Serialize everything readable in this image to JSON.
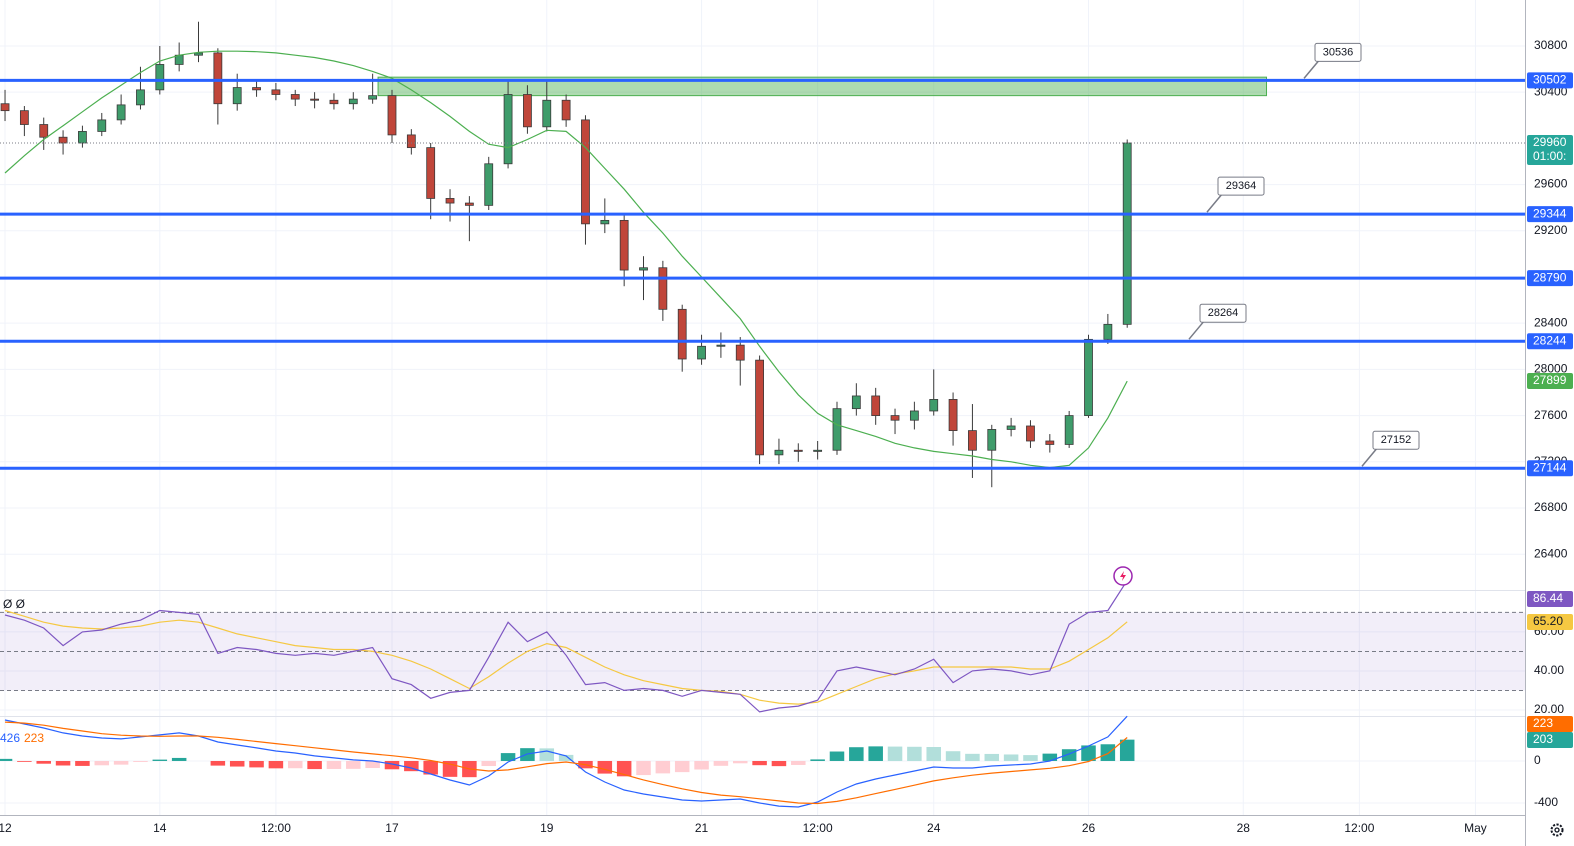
{
  "chart_data": {
    "type": "candlestick",
    "x": [
      0,
      0.25,
      0.5,
      0.75,
      1,
      1.25,
      1.5,
      1.75,
      2,
      2.25,
      2.5,
      2.75,
      3,
      3.25,
      3.5,
      3.75,
      4,
      4.25,
      4.5,
      4.75,
      5,
      5.25,
      5.5,
      5.75,
      6,
      6.25,
      6.5,
      6.75,
      7,
      7.25,
      7.5,
      7.75,
      8,
      8.25,
      8.5,
      8.75,
      9,
      9.25,
      9.5,
      9.75,
      10,
      10.25,
      10.5,
      10.75,
      11,
      11.25,
      11.5,
      11.75,
      12,
      12.25,
      12.5,
      12.75,
      13,
      13.25,
      13.5,
      13.75,
      14,
      14.25,
      14.5
    ],
    "xlim": [
      -0.065,
      19.64
    ],
    "xticks": [
      {
        "value": 0,
        "label": "12"
      },
      {
        "value": 2,
        "label": "14"
      },
      {
        "value": 3.5,
        "label": "12:00"
      },
      {
        "value": 5,
        "label": "17"
      },
      {
        "value": 7,
        "label": "19"
      },
      {
        "value": 9,
        "label": "21"
      },
      {
        "value": 10.5,
        "label": "12:00"
      },
      {
        "value": 12,
        "label": "24"
      },
      {
        "value": 14,
        "label": "26"
      },
      {
        "value": 16,
        "label": "28"
      },
      {
        "value": 17.5,
        "label": "12:00"
      },
      {
        "value": 19,
        "label": "May"
      }
    ],
    "grid": true,
    "up_color": "#3f9c6b",
    "down_color": "#c0463a",
    "open": [
      30300,
      30240,
      30120,
      30010,
      29960,
      30060,
      30160,
      30290,
      30420,
      30640,
      30720,
      30740,
      30300,
      30440,
      30420,
      30380,
      30340,
      30330,
      30300,
      30340,
      30370,
      30030,
      29920,
      29480,
      29440,
      29420,
      29780,
      30380,
      30100,
      30330,
      30160,
      29260,
      29290,
      28860,
      28880,
      28520,
      28090,
      28200,
      28210,
      28080,
      27260,
      27300,
      27290,
      27300,
      27660,
      27770,
      27600,
      27560,
      27640,
      27740,
      27470,
      27300,
      27480,
      27510,
      27380,
      27350,
      27600,
      28260,
      28390
    ],
    "high": [
      30420,
      30280,
      30180,
      30070,
      30110,
      30220,
      30380,
      30620,
      30800,
      30830,
      31010,
      30780,
      30560,
      30500,
      30480,
      30420,
      30400,
      30390,
      30400,
      30560,
      30420,
      30080,
      29960,
      29560,
      29500,
      29840,
      30500,
      30460,
      30500,
      30380,
      30200,
      29480,
      29340,
      28980,
      28940,
      28560,
      28300,
      28320,
      28280,
      28120,
      27400,
      27360,
      27380,
      27720,
      27880,
      27840,
      27660,
      27720,
      28000,
      27800,
      27700,
      27520,
      27580,
      27560,
      27440,
      27640,
      28300,
      28480,
      29990
    ],
    "low": [
      30150,
      30020,
      29900,
      29860,
      29920,
      30020,
      30120,
      30250,
      30380,
      30580,
      30660,
      30120,
      30240,
      30360,
      30330,
      30280,
      30260,
      30250,
      30250,
      30300,
      29960,
      29860,
      29300,
      29280,
      29110,
      29380,
      29740,
      30040,
      30060,
      30100,
      29080,
      29180,
      28720,
      28600,
      28420,
      27980,
      28040,
      28100,
      27860,
      27180,
      27180,
      27200,
      27220,
      27260,
      27600,
      27520,
      27440,
      27480,
      27600,
      27340,
      27060,
      26980,
      27420,
      27320,
      27280,
      27320,
      27580,
      28220,
      28360
    ],
    "close": [
      30240,
      30120,
      30010,
      29960,
      30060,
      30160,
      30290,
      30420,
      30640,
      30720,
      30740,
      30300,
      30440,
      30420,
      30380,
      30340,
      30330,
      30300,
      30340,
      30370,
      30030,
      29920,
      29480,
      29440,
      29420,
      29780,
      30380,
      30100,
      30330,
      30160,
      29260,
      29290,
      28860,
      28880,
      28520,
      28090,
      28200,
      28210,
      28080,
      27260,
      27300,
      27290,
      27300,
      27660,
      27770,
      27600,
      27560,
      27640,
      27740,
      27470,
      27300,
      27480,
      27510,
      27380,
      27350,
      27600,
      28260,
      28390,
      29960
    ],
    "countdown": "01:00:",
    "ma": {
      "color": "#4caf50",
      "values": [
        29700,
        29850,
        29990,
        30110,
        30230,
        30350,
        30460,
        30570,
        30670,
        30720,
        30745,
        30755,
        30755,
        30750,
        30740,
        30720,
        30700,
        30670,
        30630,
        30580,
        30520,
        30420,
        30310,
        30190,
        30060,
        29950,
        29920,
        29990,
        30070,
        30060,
        29920,
        29740,
        29560,
        29360,
        29180,
        28980,
        28800,
        28620,
        28440,
        28200,
        27980,
        27780,
        27620,
        27520,
        27470,
        27420,
        27360,
        27320,
        27290,
        27270,
        27250,
        27220,
        27200,
        27170,
        27150,
        27170,
        27320,
        27580,
        27899
      ]
    },
    "ylim": [
      26090,
      31198
    ],
    "yticks": [
      26400,
      26800,
      27200,
      27600,
      28000,
      28400,
      29200,
      29600,
      30400,
      30800
    ],
    "zone": {
      "from": 4.82,
      "to": 16.3,
      "low": 30370,
      "high": 30530,
      "color": "#4caf50"
    },
    "levels": [
      {
        "value": 30502,
        "callout": 30536
      },
      {
        "value": 29344,
        "callout": 29364
      },
      {
        "value": 28790
      },
      {
        "value": 28244,
        "callout": 28264
      },
      {
        "value": 27144,
        "callout": 27152
      }
    ],
    "level_color": "#2962ff",
    "rsi": {
      "legend": "Ø Ø",
      "ylim": [
        16.9,
        81.5
      ],
      "yticks": [
        {
          "value": 20,
          "label": "20.00"
        },
        {
          "value": 40,
          "label": "40.00"
        },
        {
          "value": 60,
          "label": "60.00"
        }
      ],
      "band": [
        30,
        70
      ],
      "mid": 50,
      "line": {
        "color": "#7e57c2",
        "values": [
          68.7,
          66,
          62,
          53,
          60,
          61,
          64,
          66,
          71,
          70,
          69,
          49,
          52,
          51,
          49,
          48,
          49,
          48,
          50,
          52,
          36,
          33,
          26,
          29,
          30,
          47,
          65,
          55,
          60,
          48,
          33,
          34,
          30,
          31,
          30,
          27,
          30,
          29,
          28,
          19,
          21,
          22,
          25,
          40,
          42,
          40,
          38,
          41,
          46,
          34,
          40,
          41,
          40,
          38,
          40,
          64,
          70,
          71,
          86.44
        ]
      },
      "ma": {
        "color": "#f5c842",
        "badge_label": "65.20",
        "values": [
          71,
          68,
          65,
          63,
          62,
          61.5,
          62,
          63,
          65,
          66,
          65,
          62,
          59,
          57,
          55,
          53,
          52,
          51,
          51,
          50,
          48,
          45,
          41,
          36,
          31,
          37,
          44,
          50,
          54,
          52,
          47,
          42,
          38,
          35,
          33,
          31,
          30,
          29.5,
          28,
          25,
          23.5,
          23,
          24,
          28,
          32,
          36,
          38.5,
          40,
          42,
          42,
          42,
          42,
          42,
          41,
          41,
          45,
          51,
          57,
          65.2
        ]
      }
    },
    "macd": {
      "ylim": [
        -514,
        428
      ],
      "yticks": [
        -400,
        0
      ],
      "line": {
        "color": "#2962ff",
        "values": [
          390,
          352,
          314,
          267,
          238,
          219,
          210,
          229,
          248,
          267,
          238,
          181,
          152,
          124,
          95,
          76,
          48,
          29,
          10,
          0,
          -29,
          -67,
          -124,
          -181,
          -229,
          -143,
          -10,
          67,
          95,
          48,
          -105,
          -200,
          -276,
          -314,
          -343,
          -371,
          -381,
          -371,
          -362,
          -400,
          -429,
          -438,
          -390,
          -295,
          -219,
          -171,
          -133,
          -95,
          -57,
          -67,
          -67,
          -48,
          -38,
          -29,
          0,
          67,
          143,
          229,
          426
        ]
      },
      "signal": {
        "color": "#ff6d00",
        "values": [
          370,
          360,
          340,
          310,
          285,
          260,
          245,
          238,
          235,
          238,
          238,
          225,
          205,
          185,
          165,
          145,
          125,
          105,
          85,
          67,
          50,
          30,
          5,
          -30,
          -75,
          -95,
          -85,
          -55,
          -25,
          -10,
          -35,
          -80,
          -130,
          -180,
          -225,
          -265,
          -300,
          -325,
          -340,
          -360,
          -380,
          -400,
          -405,
          -385,
          -350,
          -310,
          -270,
          -230,
          -190,
          -160,
          -135,
          -115,
          -100,
          -85,
          -70,
          -45,
          -5,
          70,
          223
        ]
      },
      "histogram": {
        "colors": [
          "#26a69a",
          "#b2dfdb",
          "#ff5252",
          "#ffcdd2"
        ],
        "values": [
          20,
          -8,
          -26,
          -43,
          -47,
          -41,
          -35,
          -9,
          13,
          29,
          0,
          -44,
          -53,
          -61,
          -70,
          -69,
          -77,
          -76,
          -75,
          -67,
          -79,
          -97,
          -129,
          -151,
          -154,
          -48,
          75,
          122,
          120,
          58,
          -70,
          -120,
          -146,
          -134,
          -118,
          -106,
          -81,
          -46,
          -22,
          -40,
          -49,
          -38,
          15,
          90,
          131,
          139,
          137,
          135,
          133,
          93,
          68,
          67,
          62,
          56,
          70,
          112,
          148,
          159,
          203
        ]
      }
    }
  }
}
